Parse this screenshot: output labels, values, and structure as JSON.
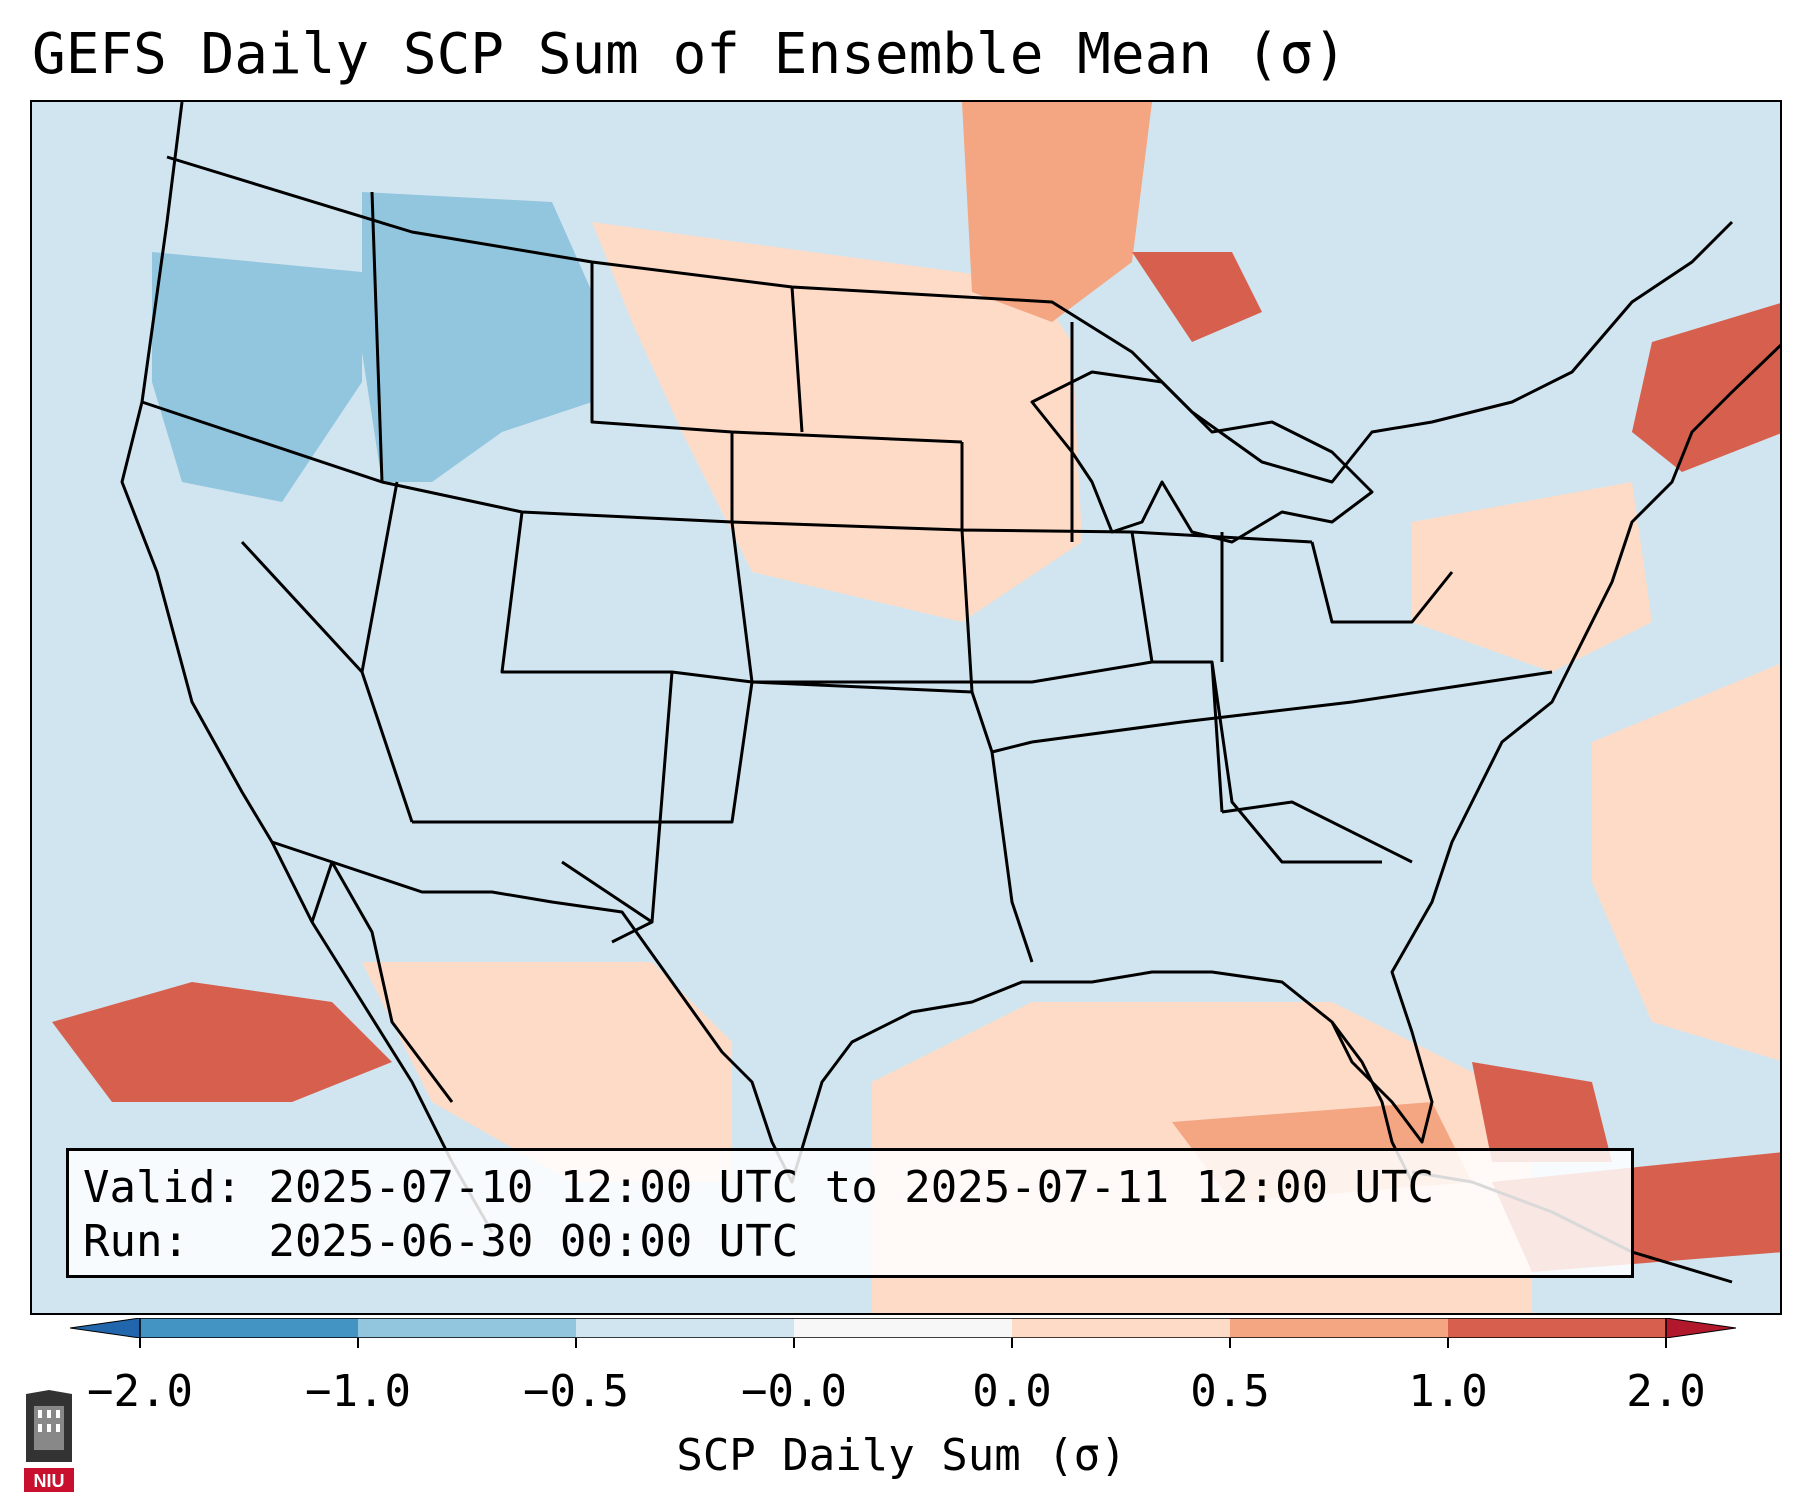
{
  "title": "GEFS Daily SCP Sum of Ensemble Mean (σ)",
  "info": {
    "valid_label": "Valid:",
    "valid_value": "2025-07-10 12:00 UTC to 2025-07-11 12:00 UTC",
    "run_label": "Run:",
    "run_value": "2025-06-30 00:00 UTC"
  },
  "colorbar": {
    "title": "SCP Daily Sum (σ)",
    "ticks": [
      "−2.0",
      "−1.0",
      "−0.5",
      "−0.0",
      "0.0",
      "0.5",
      "1.0",
      "2.0"
    ],
    "colors": {
      "extend_low": "#2166ac",
      "bin_m2_m1": "#4393c3",
      "bin_m1_m05": "#92c5de",
      "bin_m05_0": "#d1e5f0",
      "bin_zero": "#f7f7f7",
      "bin_0_05": "#fddbc7",
      "bin_05_1": "#f4a582",
      "bin_1_2": "#d6604d",
      "extend_high": "#b2182b"
    }
  },
  "logo": {
    "name": "NIU",
    "text": "NIU"
  },
  "map": {
    "projection": "Lambert conformal, CONUS",
    "background_category": "bin_m05_0",
    "anomaly_areas": [
      {
        "region": "Idaho / western Montana",
        "category": "bin_m1_m05"
      },
      {
        "region": "Oregon / Washington",
        "category": "bin_m1_m05"
      },
      {
        "region": "Upper Midwest & northern Plains",
        "category": "bin_0_05"
      },
      {
        "region": "North Dakota / Manitoba border",
        "category": "bin_05_1"
      },
      {
        "region": "Lake Superior north shore",
        "category": "bin_1_2"
      },
      {
        "region": "New England",
        "category": "bin_1_2"
      },
      {
        "region": "Mid-Atlantic",
        "category": "bin_0_05"
      },
      {
        "region": "Gulf of Mexico",
        "category": "bin_0_05"
      },
      {
        "region": "Northern Gulf of Mexico",
        "category": "bin_05_1"
      },
      {
        "region": "Florida / Bahamas",
        "category": "bin_1_2"
      },
      {
        "region": "Eastern Pacific off Baja",
        "category": "bin_1_2"
      },
      {
        "region": "Western Atlantic",
        "category": "bin_0_05"
      },
      {
        "region": "Caribbean near Cuba",
        "category": "bin_1_2"
      },
      {
        "region": "Mexico interior",
        "category": "bin_0_05"
      }
    ]
  }
}
